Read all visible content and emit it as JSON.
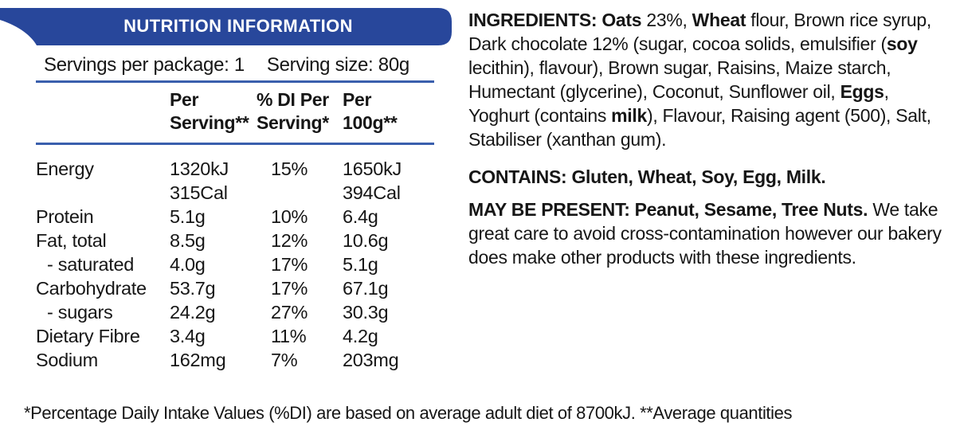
{
  "colors": {
    "banner_blue": "#28479b",
    "rule_blue": "#3a5fad",
    "text": "#161616",
    "banner_text": "#ffffff"
  },
  "panel": {
    "title": "NUTRITION INFORMATION",
    "servings_per_package": "Servings per package: 1",
    "serving_size": "Serving size: 80g",
    "columns": [
      "Per\nServing**",
      "% DI Per\nServing*",
      "Per\n100g**"
    ],
    "rows": [
      {
        "label": "Energy",
        "indent": false,
        "per_serving": "1320kJ\n315Cal",
        "pct_di": "15%",
        "per_100g": "1650kJ\n394Cal"
      },
      {
        "label": "Protein",
        "indent": false,
        "per_serving": "5.1g",
        "pct_di": "10%",
        "per_100g": "6.4g"
      },
      {
        "label": "Fat, total",
        "indent": false,
        "per_serving": "8.5g",
        "pct_di": "12%",
        "per_100g": "10.6g"
      },
      {
        "label": "- saturated",
        "indent": true,
        "per_serving": "4.0g",
        "pct_di": "17%",
        "per_100g": "5.1g"
      },
      {
        "label": "Carbohydrate",
        "indent": false,
        "per_serving": "53.7g",
        "pct_di": "17%",
        "per_100g": "67.1g"
      },
      {
        "label": "- sugars",
        "indent": true,
        "per_serving": "24.2g",
        "pct_di": "27%",
        "per_100g": "30.3g"
      },
      {
        "label": "Dietary Fibre",
        "indent": false,
        "per_serving": "3.4g",
        "pct_di": "11%",
        "per_100g": "4.2g"
      },
      {
        "label": "Sodium",
        "indent": false,
        "per_serving": "162mg",
        "pct_di": "7%",
        "per_100g": "203mg"
      }
    ]
  },
  "ingredients": {
    "segments": [
      {
        "text": "INGREDIENTS: Oats",
        "bold": true
      },
      {
        "text": " 23%, ",
        "bold": false
      },
      {
        "text": "Wheat",
        "bold": true
      },
      {
        "text": " flour, Brown rice syrup, Dark chocolate 12% (sugar, cocoa solids, emulsifier (",
        "bold": false
      },
      {
        "text": "soy",
        "bold": true
      },
      {
        "text": " lecithin), flavour), Brown sugar, Raisins, Maize starch, Humectant (glycerine), Coconut, Sunflower oil, ",
        "bold": false
      },
      {
        "text": "Eggs",
        "bold": true
      },
      {
        "text": ", Yoghurt (contains ",
        "bold": false
      },
      {
        "text": "milk",
        "bold": true
      },
      {
        "text": "), Flavour, Raising agent (500), Salt, Stabiliser (xanthan gum).",
        "bold": false
      }
    ]
  },
  "contains": {
    "text": "CONTAINS: Gluten, Wheat, Soy, Egg, Milk."
  },
  "may_be_present": {
    "segments": [
      {
        "text": "MAY BE PRESENT: Peanut, Sesame, Tree Nuts.",
        "bold": true
      },
      {
        "text": " We take great care to avoid cross-contamination however our bakery does make other products with these ingredients.",
        "bold": false
      }
    ]
  },
  "footnote": "*Percentage Daily Intake Values (%DI) are based on average adult diet of 8700kJ. **Average quantities"
}
